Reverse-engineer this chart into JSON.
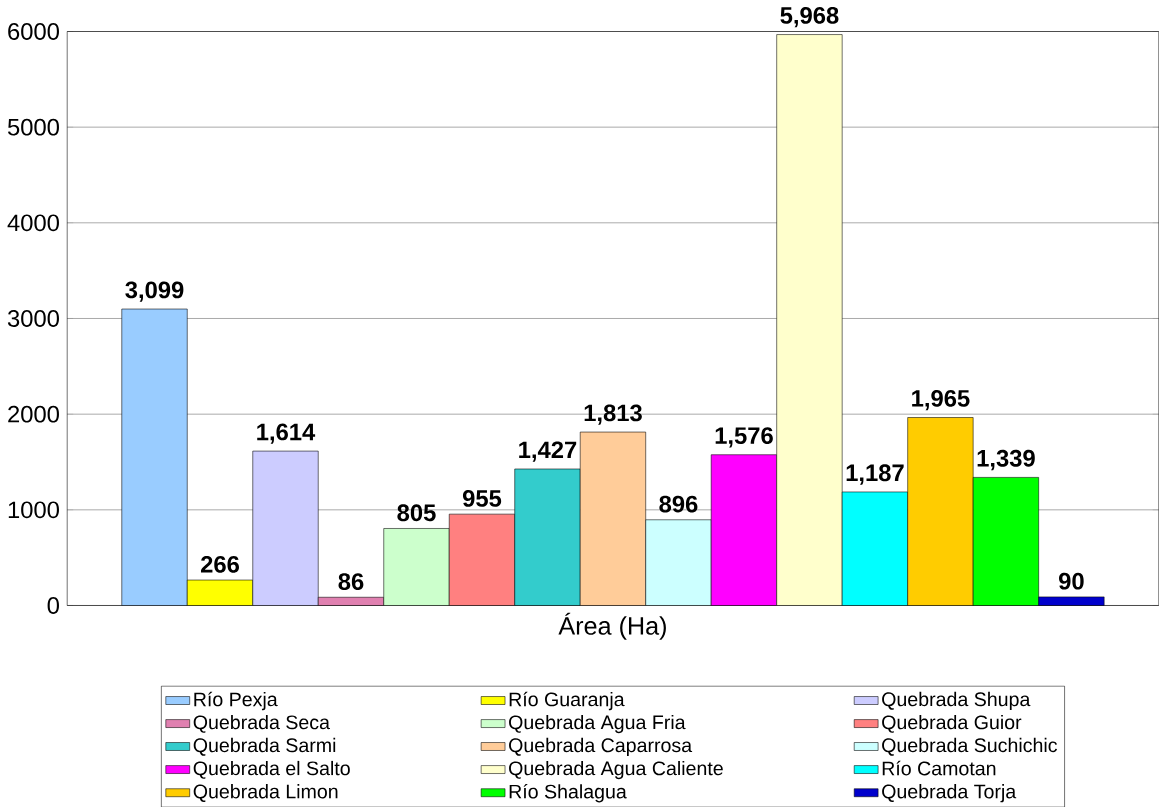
{
  "chart_data": {
    "type": "bar",
    "xlabel": "Área (Ha)",
    "categories": [
      null
    ],
    "ylim": [
      0,
      6000
    ],
    "yticks": [
      0,
      1000,
      2000,
      3000,
      4000,
      5000,
      6000
    ],
    "grid": "y",
    "legend": "bottom",
    "series": [
      {
        "name": "Río Pexja",
        "color": "#99ccff",
        "values": [
          3099
        ],
        "value_labels": [
          "3,099"
        ]
      },
      {
        "name": "Río Guaranja",
        "color": "#ffff00",
        "values": [
          266
        ],
        "value_labels": [
          "266"
        ]
      },
      {
        "name": "Quebrada Shupa",
        "color": "#ccccff",
        "values": [
          1614
        ],
        "value_labels": [
          "1,614"
        ]
      },
      {
        "name": "Quebrada Seca",
        "color": "#e080b0",
        "values": [
          86
        ],
        "value_labels": [
          "86"
        ]
      },
      {
        "name": "Quebrada Agua Fria",
        "color": "#ccffcc",
        "values": [
          805
        ],
        "value_labels": [
          "805"
        ]
      },
      {
        "name": "Quebrada Guior",
        "color": "#ff8080",
        "values": [
          955
        ],
        "value_labels": [
          "955"
        ]
      },
      {
        "name": "Quebrada Sarmi",
        "color": "#33cccc",
        "values": [
          1427
        ],
        "value_labels": [
          "1,427"
        ]
      },
      {
        "name": "Quebrada Caparrosa",
        "color": "#ffcc99",
        "values": [
          1813
        ],
        "value_labels": [
          "1,813"
        ]
      },
      {
        "name": "Quebrada Suchichic",
        "color": "#ccffff",
        "values": [
          896
        ],
        "value_labels": [
          "896"
        ]
      },
      {
        "name": "Quebrada el Salto",
        "color": "#ff00ff",
        "values": [
          1576
        ],
        "value_labels": [
          "1,576"
        ]
      },
      {
        "name": "Quebrada Agua Caliente",
        "color": "#ffffcc",
        "values": [
          5968
        ],
        "value_labels": [
          "5,968"
        ]
      },
      {
        "name": "Río Camotan",
        "color": "#00ffff",
        "values": [
          1187
        ],
        "value_labels": [
          "1,187"
        ]
      },
      {
        "name": "Quebrada Limon",
        "color": "#ffcc00",
        "values": [
          1965
        ],
        "value_labels": [
          "1,965"
        ]
      },
      {
        "name": "Río Shalagua",
        "color": "#00ff00",
        "values": [
          1339
        ],
        "value_labels": [
          "1,339"
        ]
      },
      {
        "name": "Quebrada Torja",
        "color": "#0000cc",
        "values": [
          90
        ],
        "value_labels": [
          "90"
        ]
      }
    ]
  }
}
